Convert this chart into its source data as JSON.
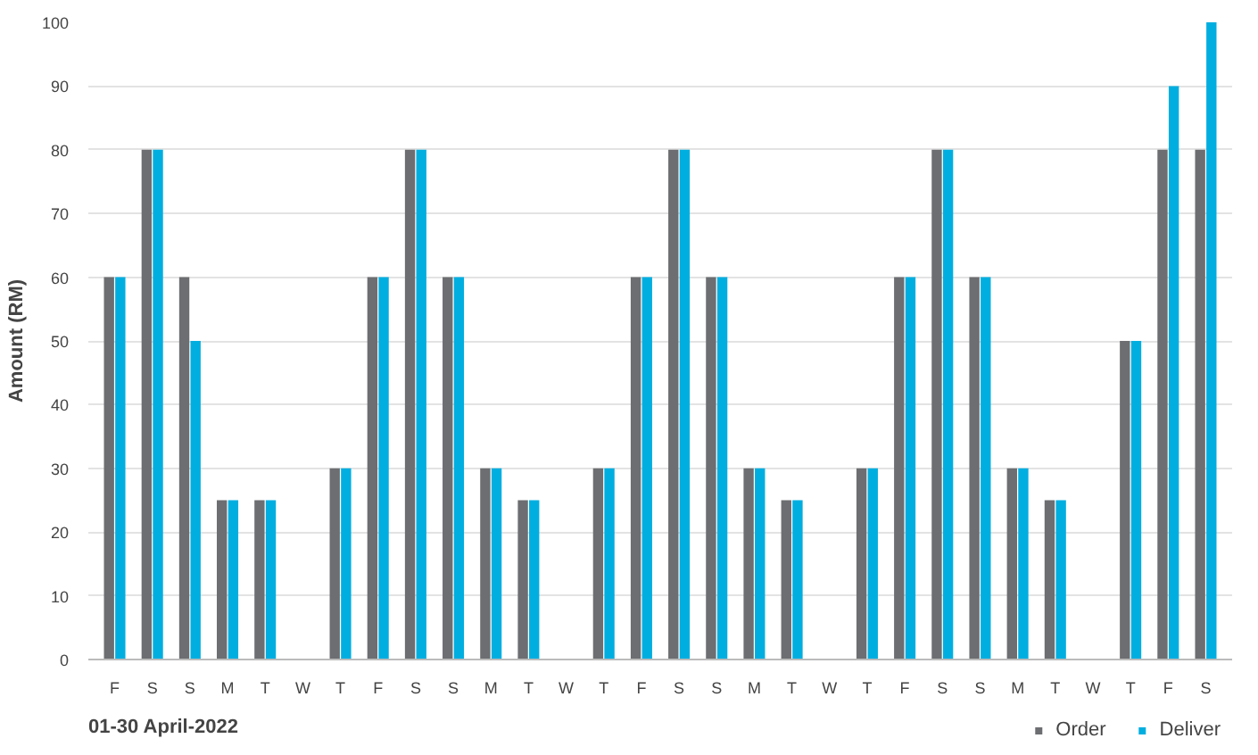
{
  "chart_data": {
    "type": "bar",
    "ylabel": "Amount (RM)",
    "annotations": [
      "01-30 April-2022"
    ],
    "categories": [
      "F",
      "S",
      "S",
      "M",
      "T",
      "W",
      "T",
      "F",
      "S",
      "S",
      "M",
      "T",
      "W",
      "T",
      "F",
      "S",
      "S",
      "M",
      "T",
      "W",
      "T",
      "F",
      "S",
      "S",
      "M",
      "T",
      "W",
      "T",
      "F",
      "S"
    ],
    "series": [
      {
        "name": "Order",
        "color": "#6d6e71",
        "values": [
          60,
          80,
          60,
          25,
          25,
          null,
          30,
          60,
          80,
          60,
          30,
          25,
          null,
          30,
          60,
          80,
          60,
          30,
          25,
          null,
          30,
          60,
          80,
          60,
          30,
          25,
          null,
          50,
          80,
          80
        ]
      },
      {
        "name": "Deliver",
        "color": "#00aee0",
        "values": [
          60,
          80,
          50,
          25,
          25,
          null,
          30,
          60,
          80,
          60,
          30,
          25,
          null,
          30,
          60,
          80,
          60,
          30,
          25,
          null,
          30,
          60,
          80,
          60,
          30,
          25,
          null,
          50,
          90,
          100
        ]
      }
    ],
    "ylim": [
      0,
      100
    ],
    "yticks": [
      0,
      10,
      20,
      30,
      40,
      50,
      60,
      70,
      80,
      90,
      100
    ],
    "grid": "y",
    "legend": "bottom right"
  }
}
